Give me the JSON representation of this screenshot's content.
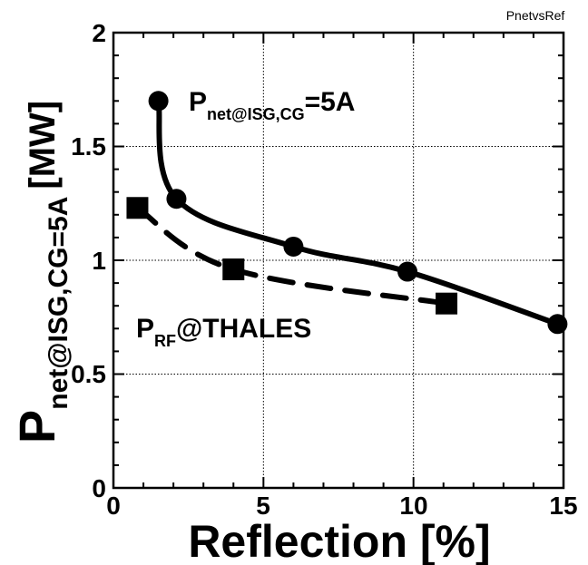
{
  "chart_data": {
    "type": "line",
    "title": "PnetvsRef",
    "xlabel": "Reflection [%]",
    "ylabel": {
      "main": "P",
      "sub": "net@ISG,CG=5A",
      "unit": "[MW]"
    },
    "xlim": [
      0,
      15
    ],
    "ylim": [
      0,
      2
    ],
    "x_ticks": [
      "0",
      "5",
      "10",
      "15"
    ],
    "y_ticks": [
      "0",
      "0.5",
      "1",
      "1.5",
      "2"
    ],
    "grid": true,
    "series": [
      {
        "name": "Pnet@ISG,CG=5A",
        "line_style": "solid",
        "marker": "circle",
        "color": "#000000",
        "x": [
          1.5,
          2.1,
          6.0,
          9.8,
          14.8
        ],
        "y": [
          1.7,
          1.27,
          1.06,
          0.95,
          0.72
        ]
      },
      {
        "name": "PRF@THALES",
        "line_style": "dashed",
        "marker": "square",
        "color": "#000000",
        "x": [
          0.8,
          4.0,
          11.1
        ],
        "y": [
          1.23,
          0.96,
          0.81
        ]
      }
    ],
    "annotations": [
      {
        "main": "P",
        "sub": "net@ISG,CG",
        "rest": "=5A"
      },
      {
        "main": "P",
        "sub": "RF",
        "rest": "@THALES"
      }
    ]
  }
}
